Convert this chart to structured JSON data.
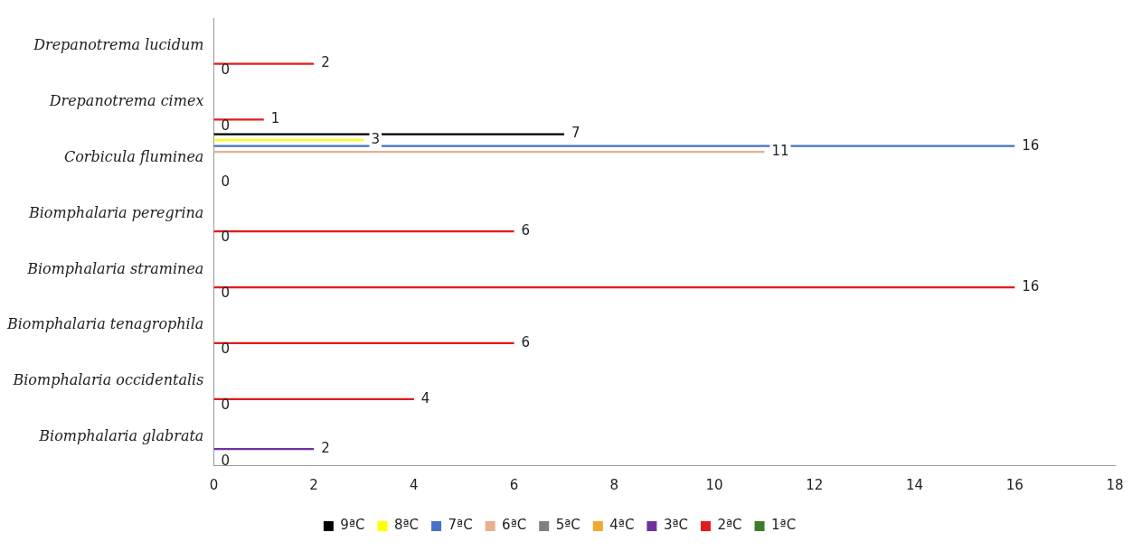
{
  "chart_data": {
    "type": "bar",
    "orientation": "horizontal",
    "legend": "bottom",
    "grid": false,
    "categories": [
      "Drepanotrema lucidum",
      "Drepanotrema cimex",
      "Corbicula fluminea",
      "Biomphalaria peregrina",
      "Biomphalaria straminea",
      "Biomphalaria tenagrophila",
      "Biomphalaria occidentalis",
      "Biomphalaria glabrata"
    ],
    "xlim": [
      0,
      18
    ],
    "xticks": [
      0,
      2,
      4,
      6,
      8,
      10,
      12,
      14,
      16,
      18
    ],
    "series": [
      {
        "name": "9ªC",
        "color": "#000000",
        "values": [
          0,
          0,
          7,
          0,
          0,
          0,
          0,
          0
        ],
        "value_labels": [
          null,
          null,
          "7",
          null,
          null,
          null,
          null,
          null
        ]
      },
      {
        "name": "8ªC",
        "color": "#ffff00",
        "values": [
          0,
          0,
          3,
          0,
          0,
          0,
          0,
          0
        ],
        "value_labels": [
          null,
          null,
          "3",
          null,
          null,
          null,
          null,
          null
        ]
      },
      {
        "name": "7ªC",
        "color": "#4472c4",
        "values": [
          0,
          0,
          16,
          0,
          0,
          0,
          0,
          0
        ],
        "value_labels": [
          null,
          null,
          "16",
          null,
          null,
          null,
          null,
          null
        ]
      },
      {
        "name": "6ªC",
        "color": "#e6b08c",
        "values": [
          0,
          0,
          11,
          0,
          0,
          0,
          0,
          0
        ],
        "value_labels": [
          null,
          null,
          "11",
          null,
          null,
          null,
          null,
          null
        ]
      },
      {
        "name": "5ªC",
        "color": "#808080",
        "values": [
          0,
          0,
          0,
          0,
          0,
          0,
          0,
          0
        ]
      },
      {
        "name": "4ªC",
        "color": "#f0a830",
        "values": [
          0,
          0,
          0,
          0,
          0,
          0,
          0,
          0
        ]
      },
      {
        "name": "3ªC",
        "color": "#7030a0",
        "values": [
          0,
          0,
          0,
          0,
          0,
          0,
          0,
          2
        ],
        "value_labels": [
          null,
          null,
          null,
          null,
          null,
          null,
          null,
          "2"
        ]
      },
      {
        "name": "2ªC",
        "color": "#e31a1c",
        "values": [
          2,
          1,
          0,
          6,
          16,
          6,
          4,
          0
        ],
        "value_labels": [
          "2",
          "1",
          null,
          "6",
          "16",
          "6",
          "4",
          null
        ]
      },
      {
        "name": "1ªC",
        "color": "#3a7d2c",
        "values": [
          0,
          0,
          0,
          0,
          0,
          0,
          0,
          0
        ]
      }
    ],
    "annotations": [
      "0",
      "0",
      "0",
      "0",
      "0",
      "0",
      "0",
      "0"
    ]
  }
}
